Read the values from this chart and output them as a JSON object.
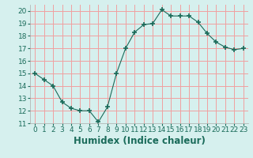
{
  "x": [
    0,
    1,
    2,
    3,
    4,
    5,
    6,
    7,
    8,
    9,
    10,
    11,
    12,
    13,
    14,
    15,
    16,
    17,
    18,
    19,
    20,
    21,
    22,
    23
  ],
  "y": [
    15.0,
    14.5,
    14.0,
    12.7,
    12.2,
    12.0,
    12.0,
    11.1,
    12.3,
    15.0,
    17.0,
    18.3,
    18.9,
    19.0,
    20.1,
    19.6,
    19.6,
    19.6,
    19.1,
    18.2,
    17.5,
    17.1,
    16.9,
    17.0
  ],
  "line_color": "#1a6b5a",
  "marker": "+",
  "marker_size": 4,
  "bg_color": "#d6f0ee",
  "grid_color": "#f0a0a0",
  "xlabel": "Humidex (Indice chaleur)",
  "xlim": [
    -0.5,
    23.5
  ],
  "ylim": [
    11,
    20.5
  ],
  "yticks": [
    11,
    12,
    13,
    14,
    15,
    16,
    17,
    18,
    19,
    20
  ],
  "xticks": [
    0,
    1,
    2,
    3,
    4,
    5,
    6,
    7,
    8,
    9,
    10,
    11,
    12,
    13,
    14,
    15,
    16,
    17,
    18,
    19,
    20,
    21,
    22,
    23
  ],
  "tick_fontsize": 6.5,
  "xlabel_fontsize": 8.5,
  "tick_color": "#1a6b5a",
  "label_color": "#1a6b5a"
}
